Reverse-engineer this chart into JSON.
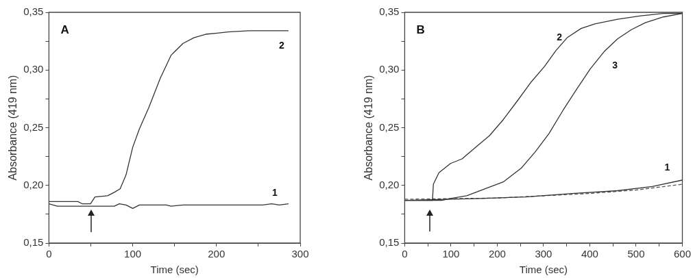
{
  "chart_data": [
    {
      "type": "line",
      "title": "A",
      "xlabel": "Time (sec)",
      "ylabel": "Absorbance (419 nm)",
      "xlim": [
        0,
        300
      ],
      "xticks": [
        0,
        {
          "value": 50,
          "label": null
        },
        100,
        {
          "value": 150,
          "label": null
        },
        200,
        {
          "value": 250,
          "label": null
        },
        300
      ],
      "ylim": [
        0.15,
        0.35
      ],
      "yticks": [
        {
          "value": 0.15,
          "label": "0,15"
        },
        {
          "value": 0.175,
          "label": null
        },
        {
          "value": 0.2,
          "label": "0,20"
        },
        {
          "value": 0.225,
          "label": null
        },
        {
          "value": 0.25,
          "label": "0,25"
        },
        {
          "value": 0.275,
          "label": null
        },
        {
          "value": 0.3,
          "label": "0,30"
        },
        {
          "value": 0.325,
          "label": null
        },
        {
          "value": 0.35,
          "label": "0,35"
        }
      ],
      "grid": false,
      "legend": false,
      "marker": "none",
      "line_style": "solid",
      "series": [
        {
          "name": "1",
          "color": "#333333",
          "x": [
            0,
            10,
            40,
            78,
            84,
            92,
            100,
            108,
            115,
            140,
            146,
            160,
            200,
            255,
            266,
            275,
            286
          ],
          "values": [
            0.184,
            0.182,
            0.182,
            0.182,
            0.184,
            0.183,
            0.18,
            0.183,
            0.183,
            0.183,
            0.182,
            0.183,
            0.183,
            0.183,
            0.184,
            0.183,
            0.184
          ]
        },
        {
          "name": "2",
          "color": "#333333",
          "x": [
            0,
            34.6,
            40,
            49.6,
            55,
            70,
            78,
            85,
            92,
            100,
            108,
            119,
            133,
            146,
            160,
            173,
            187,
            201,
            214,
            239,
            286
          ],
          "values": [
            0.186,
            0.186,
            0.184,
            0.184,
            0.19,
            0.191,
            0.194,
            0.197,
            0.209,
            0.233,
            0.249,
            0.267,
            0.293,
            0.313,
            0.323,
            0.328,
            0.331,
            0.332,
            0.333,
            0.334,
            0.334
          ]
        }
      ]
    },
    {
      "type": "line",
      "title": "B",
      "xlabel": "Time (sec)",
      "ylabel": "Absorbance (419 nm)",
      "xlim": [
        0,
        600
      ],
      "xticks": [
        0,
        {
          "value": 50,
          "label": null
        },
        100,
        {
          "value": 150,
          "label": null
        },
        200,
        {
          "value": 250,
          "label": null
        },
        300,
        {
          "value": 350,
          "label": null
        },
        400,
        {
          "value": 450,
          "label": null
        },
        500,
        {
          "value": 550,
          "label": null
        },
        600
      ],
      "ylim": [
        0.15,
        0.35
      ],
      "yticks": [
        {
          "value": 0.15,
          "label": "0,15"
        },
        {
          "value": 0.175,
          "label": null
        },
        {
          "value": 0.2,
          "label": "0,20"
        },
        {
          "value": 0.225,
          "label": null
        },
        {
          "value": 0.25,
          "label": "0,25"
        },
        {
          "value": 0.275,
          "label": null
        },
        {
          "value": 0.3,
          "label": "0,30"
        },
        {
          "value": 0.325,
          "label": null
        },
        {
          "value": 0.35,
          "label": "0,35"
        }
      ],
      "grid": false,
      "legend": false,
      "marker": "none",
      "line_style": "solid",
      "series": [
        {
          "name": "1",
          "color": "#333333",
          "x": [
            0,
            163,
            262,
            361,
            460,
            535,
            600
          ],
          "values": [
            0.187,
            0.1886,
            0.19,
            0.193,
            0.1954,
            0.199,
            0.2046
          ]
        },
        {
          "name": "2",
          "color": "#333333",
          "x": [
            0,
            60,
            62,
            74,
            99,
            124,
            153,
            183,
            213,
            243,
            272,
            302,
            327,
            351,
            381,
            411,
            460,
            510,
            559,
            600
          ],
          "values": [
            0.187,
            0.187,
            0.201,
            0.211,
            0.219,
            0.223,
            0.233,
            0.243,
            0.257,
            0.273,
            0.289,
            0.303,
            0.317,
            0.328,
            0.336,
            0.34,
            0.344,
            0.347,
            0.349,
            0.349
          ]
        },
        {
          "name": "3",
          "color": "#333333",
          "x": [
            0,
            80,
            99,
            134,
            173,
            213,
            252,
            282,
            312,
            342,
            371,
            401,
            431,
            460,
            490,
            520,
            559,
            600
          ],
          "values": [
            0.187,
            0.187,
            0.1886,
            0.191,
            0.197,
            0.203,
            0.215,
            0.229,
            0.245,
            0.265,
            0.283,
            0.301,
            0.316,
            0.327,
            0.335,
            0.341,
            0.346,
            0.349
          ]
        },
        {
          "color": "#555555",
          "line_style": "dashed",
          "x": [
            0,
            200,
            400,
            500,
            600
          ],
          "values": [
            0.188,
            0.189,
            0.193,
            0.196,
            0.201
          ]
        }
      ]
    }
  ]
}
